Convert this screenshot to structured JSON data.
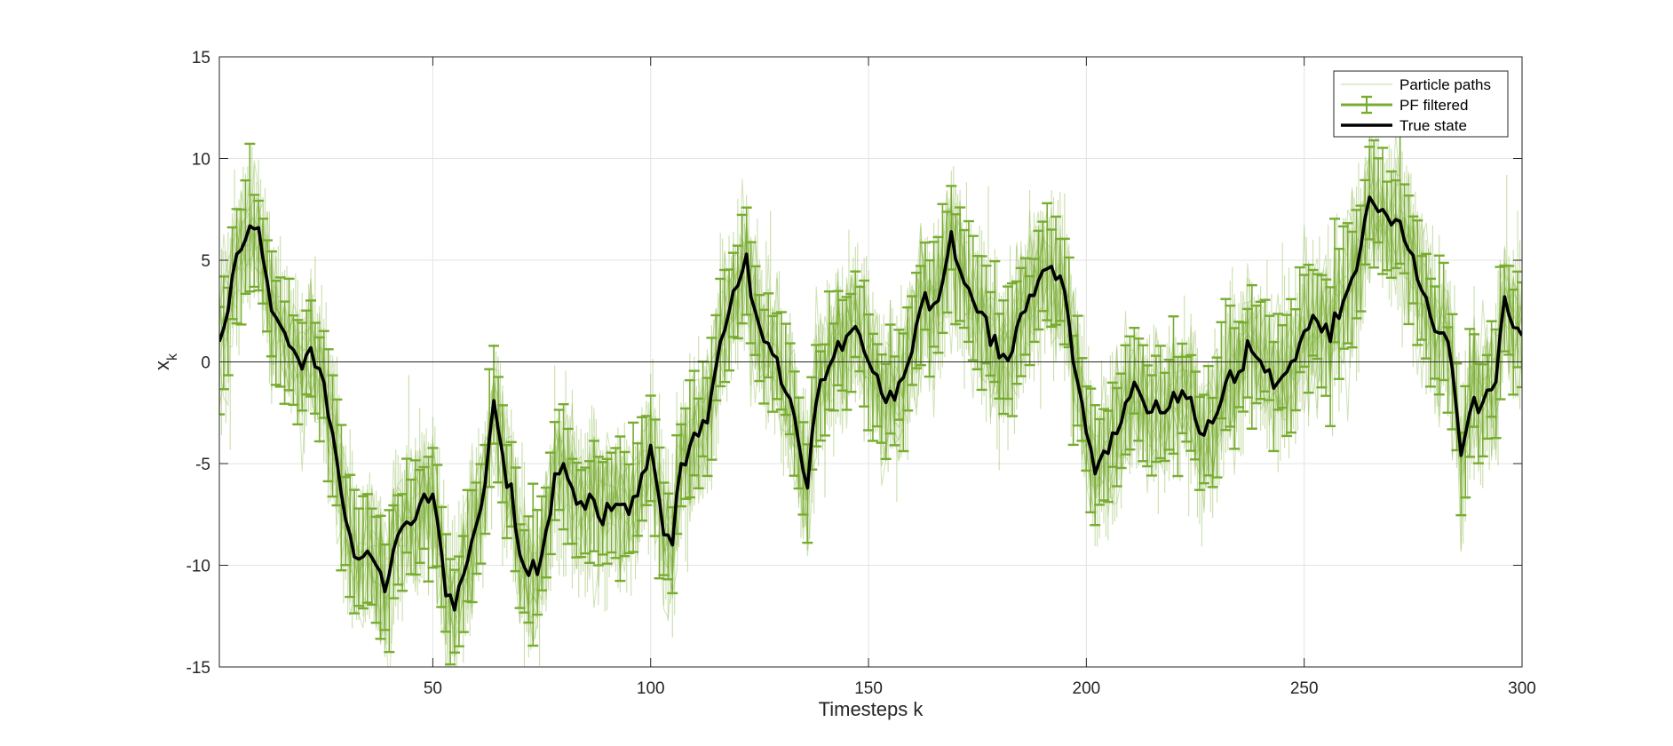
{
  "chart_data": {
    "type": "line",
    "xlabel": "Timesteps k",
    "ylabel": "x",
    "ylabel_subscript": "k",
    "xlim": [
      1,
      300
    ],
    "ylim": [
      -15,
      15
    ],
    "xticks": [
      50,
      100,
      150,
      200,
      250,
      300
    ],
    "yticks": [
      -15,
      -10,
      -5,
      0,
      5,
      10,
      15
    ],
    "xtick_labels": [
      "50",
      "100",
      "150",
      "200",
      "250",
      "300"
    ],
    "ytick_labels": [
      "-15",
      "-10",
      "-5",
      "0",
      "5",
      "10",
      "15"
    ],
    "grid": true,
    "zero_line": true,
    "legend": {
      "placement": "top-right",
      "entries": [
        "Particle paths",
        "PF filtered",
        "True state"
      ]
    },
    "colors": {
      "particles": "#77AC30",
      "pf_filtered": "#77AC30",
      "true_state": "#000000",
      "grid": "#e3e3e3",
      "axes": "#262626"
    },
    "true_state_anchors": {
      "x": [
        1,
        3,
        5,
        7,
        10,
        13,
        15,
        17,
        19,
        22,
        25,
        27,
        29,
        31,
        33,
        35,
        37,
        39,
        42,
        45,
        48,
        50,
        53,
        55,
        57,
        60,
        62,
        64,
        66,
        68,
        70,
        72,
        75,
        78,
        80,
        83,
        86,
        89,
        92,
        95,
        98,
        100,
        103,
        105,
        107,
        110,
        113,
        116,
        119,
        122,
        124,
        126,
        129,
        131,
        134,
        136,
        138,
        141,
        143,
        146,
        149,
        151,
        154,
        157,
        160,
        163,
        166,
        169,
        171,
        174,
        177,
        180,
        183,
        186,
        189,
        192,
        195,
        198,
        200,
        202,
        205,
        208,
        211,
        214,
        217,
        220,
        223,
        226,
        229,
        232,
        235,
        238,
        241,
        244,
        247,
        250,
        253,
        256,
        259,
        262,
        265,
        268,
        271,
        274,
        277,
        280,
        283,
        286,
        288,
        291,
        294,
        296,
        298,
        300
      ],
      "y": [
        1.0,
        2.5,
        5.3,
        6.0,
        6.6,
        2.5,
        1.8,
        0.8,
        0.2,
        0.7,
        -1.0,
        -3.5,
        -6.5,
        -8.5,
        -9.7,
        -9.3,
        -10.0,
        -11.3,
        -8.5,
        -8.0,
        -6.5,
        -6.5,
        -11.5,
        -12.2,
        -10.5,
        -8.0,
        -6.0,
        -1.9,
        -4.5,
        -6.0,
        -9.5,
        -10.5,
        -9.5,
        -5.5,
        -5.0,
        -7.0,
        -6.5,
        -8.0,
        -7.0,
        -7.5,
        -5.5,
        -4.1,
        -8.5,
        -9.0,
        -5.0,
        -3.5,
        -3.0,
        1.0,
        3.5,
        5.3,
        2.5,
        1.0,
        0.2,
        -1.5,
        -4.0,
        -6.2,
        -2.0,
        -0.2,
        1.0,
        1.5,
        0.5,
        -0.5,
        -2.0,
        -1.0,
        0.5,
        3.4,
        3.0,
        6.4,
        4.5,
        3.0,
        2.2,
        0.2,
        0.5,
        2.5,
        4.0,
        4.7,
        3.5,
        -1.0,
        -3.5,
        -5.5,
        -4.5,
        -3.0,
        -1.0,
        -2.5,
        -2.5,
        -1.5,
        -1.8,
        -3.5,
        -3.0,
        -1.0,
        -0.5,
        0.5,
        -0.5,
        -1.0,
        0.0,
        1.5,
        2.0,
        1.0,
        3.0,
        4.5,
        8.1,
        7.5,
        7.0,
        5.5,
        3.5,
        1.5,
        1.0,
        -4.6,
        -2.5,
        -2.0,
        -1.0,
        3.2,
        1.7,
        1.3
      ]
    }
  }
}
